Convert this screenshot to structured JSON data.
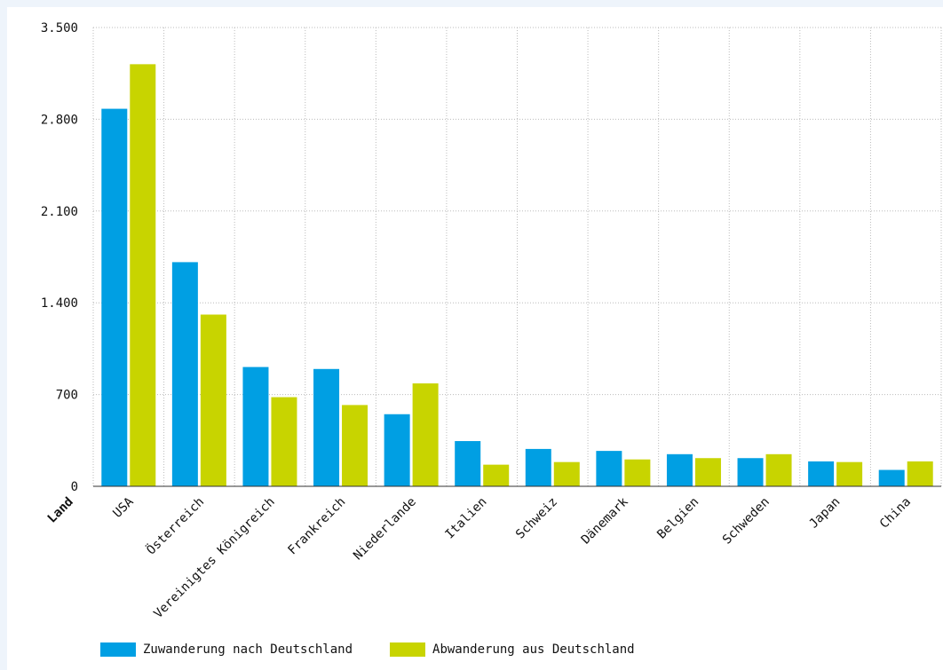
{
  "colors": {
    "zuwanderung": "#009fe3",
    "abwanderung": "#c8d400",
    "grid": "#bbbbbb",
    "axis": "#333333"
  },
  "chart_data": {
    "type": "bar",
    "xlabel": "Land",
    "ylabel": "",
    "ylim": [
      0,
      3500
    ],
    "yticks": [
      0,
      700,
      1400,
      2100,
      2800,
      3500
    ],
    "ytick_labels": [
      "0",
      "700",
      "1.400",
      "2.100",
      "2.800",
      "3.500"
    ],
    "grid": true,
    "legend_position": "bottom-left",
    "categories": [
      "USA",
      "Österreich",
      "Vereinigtes Königreich",
      "Frankreich",
      "Niederlande",
      "Italien",
      "Schweiz",
      "Dänemark",
      "Belgien",
      "Schweden",
      "Japan",
      "China"
    ],
    "series": [
      {
        "name": "Zuwanderung nach Deutschland",
        "color_key": "zuwanderung",
        "values": [
          2880,
          1710,
          910,
          895,
          550,
          345,
          285,
          270,
          245,
          215,
          190,
          125
        ]
      },
      {
        "name": "Abwanderung aus Deutschland",
        "color_key": "abwanderung",
        "values": [
          3220,
          1310,
          680,
          620,
          785,
          165,
          185,
          205,
          215,
          245,
          185,
          190
        ]
      }
    ]
  }
}
